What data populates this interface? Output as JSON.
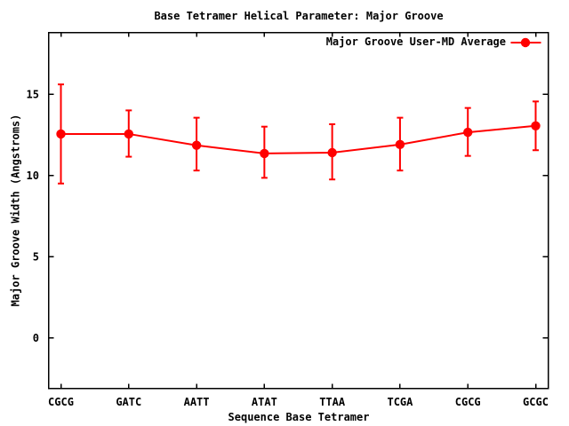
{
  "window": {
    "background": "#ffffff",
    "text_color": "#000000",
    "axis_color": "#000000"
  },
  "chart_data": {
    "type": "line",
    "title": "Base Tetramer Helical Parameter: Major Groove",
    "xlabel": "Sequence Base Tetramer",
    "ylabel": "Major Groove Width (Angstroms)",
    "categories": [
      "CGCG",
      "GATC",
      "AATT",
      "ATAT",
      "TTAA",
      "TCGA",
      "CGCG",
      "GCGC"
    ],
    "series": [
      {
        "name": "Major Groove User-MD Average",
        "color": "#ff0000",
        "marker": "filled-circle",
        "values": [
          12.55,
          12.55,
          11.85,
          11.35,
          11.4,
          11.9,
          12.65,
          13.05
        ],
        "err_low": [
          9.5,
          11.15,
          10.3,
          9.85,
          9.75,
          10.3,
          11.2,
          11.55
        ],
        "err_high": [
          15.6,
          14.0,
          13.55,
          13.0,
          13.15,
          13.55,
          14.15,
          14.55
        ]
      }
    ],
    "yticks": [
      0,
      5,
      10,
      15
    ],
    "ylim": [
      -3.1,
      18.8
    ],
    "grid": false,
    "legend_position": "top-right-inside",
    "border": true,
    "mirrored_ticks": true
  }
}
